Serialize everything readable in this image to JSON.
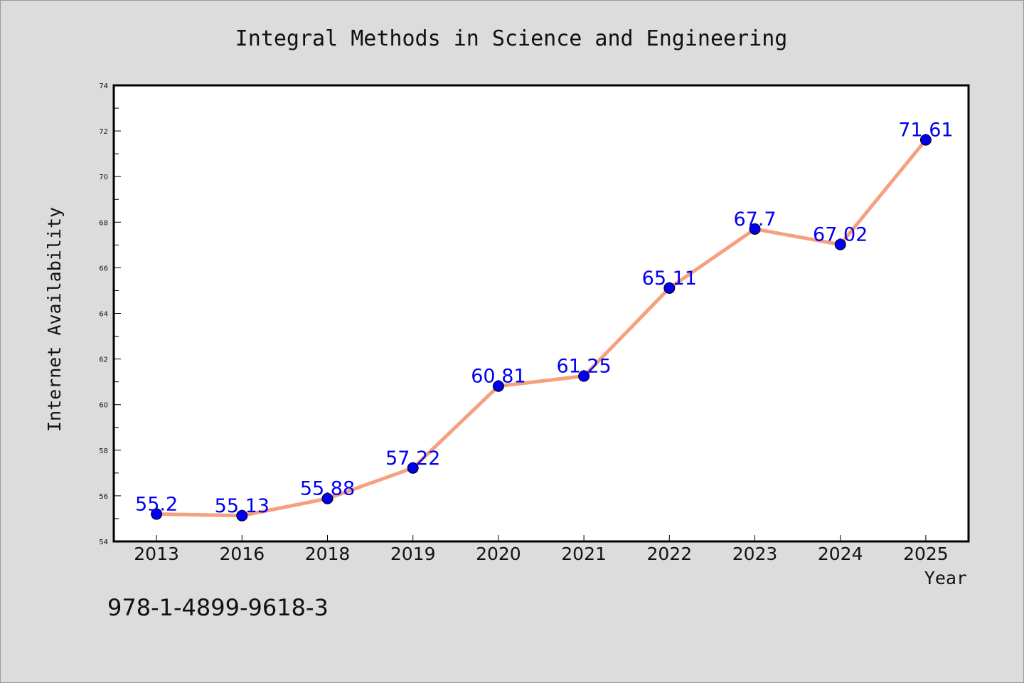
{
  "chart_data": {
    "type": "line",
    "title": "Integral Methods in Science and Engineering",
    "xlabel": "Year",
    "ylabel": "Internet Availability",
    "categories": [
      "2013",
      "2016",
      "2018",
      "2019",
      "2020",
      "2021",
      "2022",
      "2023",
      "2024",
      "2025"
    ],
    "values": [
      55.2,
      55.13,
      55.88,
      57.22,
      60.81,
      61.25,
      65.11,
      67.7,
      67.02,
      71.61
    ],
    "data_labels": [
      "55.2",
      "55.13",
      "55.88",
      "57.22",
      "60.81",
      "61.25",
      "65.11",
      "67.7",
      "67.02",
      "71.61"
    ],
    "ylim": [
      54,
      74
    ],
    "yticks": [
      54,
      56,
      58,
      60,
      62,
      64,
      66,
      68,
      70,
      72,
      74
    ],
    "grid": false,
    "legend": "none",
    "line_color": "#f5a07f",
    "marker_color": "#0000ee",
    "label_color": "#0000ee",
    "background": "#dcdcdc",
    "plot_background": "#ffffff"
  },
  "footer": {
    "isbn": "978-1-4899-9618-3"
  }
}
